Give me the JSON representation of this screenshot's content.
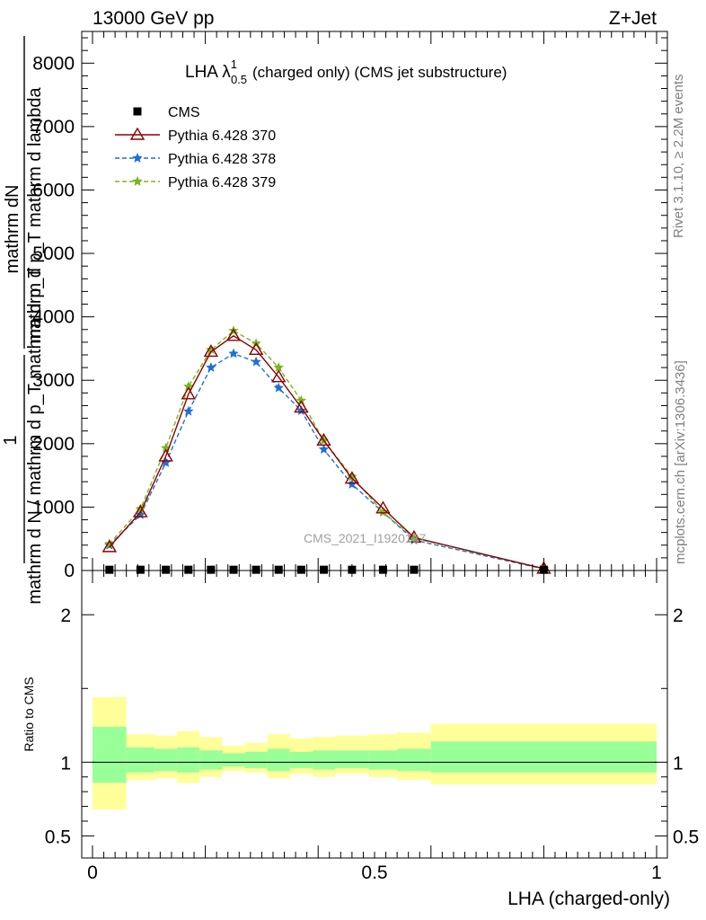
{
  "header": {
    "left": "13000 GeV pp",
    "right": "Z+Jet"
  },
  "title": {
    "prefix": "LHA λ",
    "sup": "1",
    "sub": "0.5",
    "suffix": "(charged only) (CMS jet substructure)"
  },
  "side_labels": {
    "rivet": "Rivet 3.1.10, ≥ 2.2M events",
    "mcplots": "mcplots.cern.ch [arXiv:1306.3436]"
  },
  "watermark": "CMS_2021_I1920187",
  "ylabel_top": {
    "numerator": "mathrm dN",
    "denominator": "mathrm d p_T mathrm d lambda",
    "outer_numerator": "1",
    "outer_denominator": "mathrm d N / mathrm d p_T mathrm d p_T"
  },
  "ylabel_ratio": "Ratio to CMS",
  "xlabel": "LHA (charged-only)",
  "legend": [
    {
      "label": "CMS",
      "color": "#000000",
      "marker": "square",
      "dashed": false
    },
    {
      "label": "Pythia 6.428 370",
      "color": "#8b0000",
      "marker": "triangle-open",
      "dashed": false
    },
    {
      "label": "Pythia 6.428 378",
      "color": "#1e6fd9",
      "marker": "star",
      "dashed": true
    },
    {
      "label": "Pythia 6.428 379",
      "color": "#7ab51d",
      "marker": "star",
      "dashed": true
    }
  ],
  "chart_data": [
    {
      "type": "line",
      "panel": "main",
      "xlim": [
        0,
        1
      ],
      "ylim": [
        0,
        8500
      ],
      "yticks": [
        0,
        1000,
        2000,
        3000,
        4000,
        5000,
        6000,
        7000,
        8000
      ],
      "ytick_labels": [
        "0",
        "1000",
        "2000",
        "3000",
        "4000",
        "5000",
        "6000",
        "7000",
        "8000"
      ],
      "x_edges": [
        0,
        0.06,
        0.11,
        0.15,
        0.19,
        0.23,
        0.27,
        0.31,
        0.35,
        0.39,
        0.43,
        0.49,
        0.54,
        0.6,
        1.0
      ],
      "x": [
        0.03,
        0.085,
        0.13,
        0.17,
        0.21,
        0.25,
        0.29,
        0.33,
        0.37,
        0.41,
        0.46,
        0.515,
        0.57,
        0.8
      ],
      "series": [
        {
          "name": "CMS",
          "values": [
            12,
            12,
            12,
            12,
            12,
            12,
            12,
            12,
            12,
            12,
            12,
            12,
            12,
            12
          ]
        },
        {
          "name": "Pythia 6.428 370",
          "values": [
            370,
            920,
            1800,
            2780,
            3450,
            3700,
            3480,
            3050,
            2570,
            2050,
            1450,
            980,
            520,
            30
          ]
        },
        {
          "name": "Pythia 6.428 378",
          "values": [
            400,
            880,
            1700,
            2510,
            3200,
            3420,
            3290,
            2880,
            2520,
            1910,
            1360,
            920,
            480,
            25
          ]
        },
        {
          "name": "Pythia 6.428 379",
          "values": [
            420,
            970,
            1930,
            2900,
            3480,
            3780,
            3580,
            3200,
            2680,
            2050,
            1480,
            920,
            510,
            30
          ]
        }
      ]
    },
    {
      "type": "area",
      "panel": "ratio",
      "ylabel": "Ratio to CMS",
      "xlim": [
        0,
        1
      ],
      "ylim": [
        0.35,
        2.3
      ],
      "yticks": [
        0.5,
        1,
        2
      ],
      "ytick_labels": [
        "0.5",
        "1",
        "2"
      ],
      "xticks": [
        0,
        0.5,
        1
      ],
      "xtick_labels": [
        "0",
        "0.5",
        "1"
      ],
      "x_edges": [
        0,
        0.06,
        0.11,
        0.15,
        0.19,
        0.23,
        0.27,
        0.31,
        0.35,
        0.39,
        0.43,
        0.49,
        0.54,
        0.6,
        1.0
      ],
      "stat_band": {
        "low": [
          0.86,
          0.93,
          0.94,
          0.93,
          0.95,
          0.97,
          0.96,
          0.94,
          0.96,
          0.95,
          0.96,
          0.95,
          0.94,
          0.93
        ],
        "high": [
          1.24,
          1.1,
          1.09,
          1.1,
          1.08,
          1.06,
          1.07,
          1.09,
          1.07,
          1.08,
          1.08,
          1.08,
          1.09,
          1.14
        ]
      },
      "total_band": {
        "low": [
          0.68,
          0.88,
          0.89,
          0.86,
          0.9,
          0.94,
          0.93,
          0.89,
          0.92,
          0.9,
          0.92,
          0.9,
          0.88,
          0.85
        ],
        "high": [
          1.44,
          1.19,
          1.18,
          1.21,
          1.17,
          1.11,
          1.13,
          1.19,
          1.16,
          1.17,
          1.18,
          1.19,
          1.2,
          1.26
        ]
      },
      "colors": {
        "stat": "#99ff99",
        "total": "#ffff99"
      },
      "reference_line": 1
    }
  ]
}
